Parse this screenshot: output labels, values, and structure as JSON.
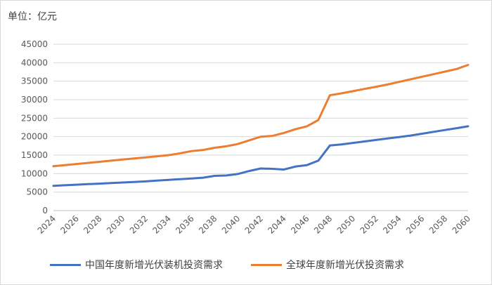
{
  "chart_data": {
    "type": "line",
    "unit_label": "单位：亿元",
    "x": [
      2024,
      2025,
      2026,
      2027,
      2028,
      2029,
      2030,
      2031,
      2032,
      2033,
      2034,
      2035,
      2036,
      2037,
      2038,
      2039,
      2040,
      2041,
      2042,
      2043,
      2044,
      2045,
      2046,
      2047,
      2048,
      2049,
      2050,
      2051,
      2052,
      2053,
      2054,
      2055,
      2056,
      2057,
      2058,
      2059,
      2060
    ],
    "x_tick_labels": [
      "2024",
      "2026",
      "2028",
      "2030",
      "2032",
      "2034",
      "2036",
      "2038",
      "2040",
      "2042",
      "2044",
      "2046",
      "2048",
      "2050",
      "2052",
      "2054",
      "2056",
      "2058",
      "2060"
    ],
    "ylim": [
      0,
      45000
    ],
    "y_ticks": [
      0,
      5000,
      10000,
      15000,
      20000,
      25000,
      30000,
      35000,
      40000,
      45000
    ],
    "grid": true,
    "legend_position": "bottom",
    "series": [
      {
        "name": "中国年度新增光伏装机投资需求",
        "color": "#4472C4",
        "values": [
          6700,
          6850,
          7000,
          7150,
          7300,
          7450,
          7600,
          7750,
          7900,
          8100,
          8300,
          8500,
          8700,
          8900,
          9400,
          9500,
          9900,
          10700,
          11400,
          11300,
          11100,
          11900,
          12300,
          13500,
          17600,
          17900,
          18300,
          18700,
          19100,
          19500,
          19900,
          20300,
          20800,
          21300,
          21800,
          22300,
          22800
        ]
      },
      {
        "name": "全球年度新增光伏投资需求",
        "color": "#ED7D31",
        "values": [
          12000,
          12300,
          12600,
          12900,
          13200,
          13500,
          13800,
          14100,
          14400,
          14700,
          15000,
          15500,
          16100,
          16400,
          17000,
          17400,
          18000,
          19000,
          20000,
          20200,
          21000,
          22000,
          22800,
          24500,
          31200,
          31700,
          32300,
          32900,
          33500,
          34100,
          34800,
          35500,
          36200,
          36900,
          37600,
          38300,
          39400
        ]
      }
    ]
  }
}
